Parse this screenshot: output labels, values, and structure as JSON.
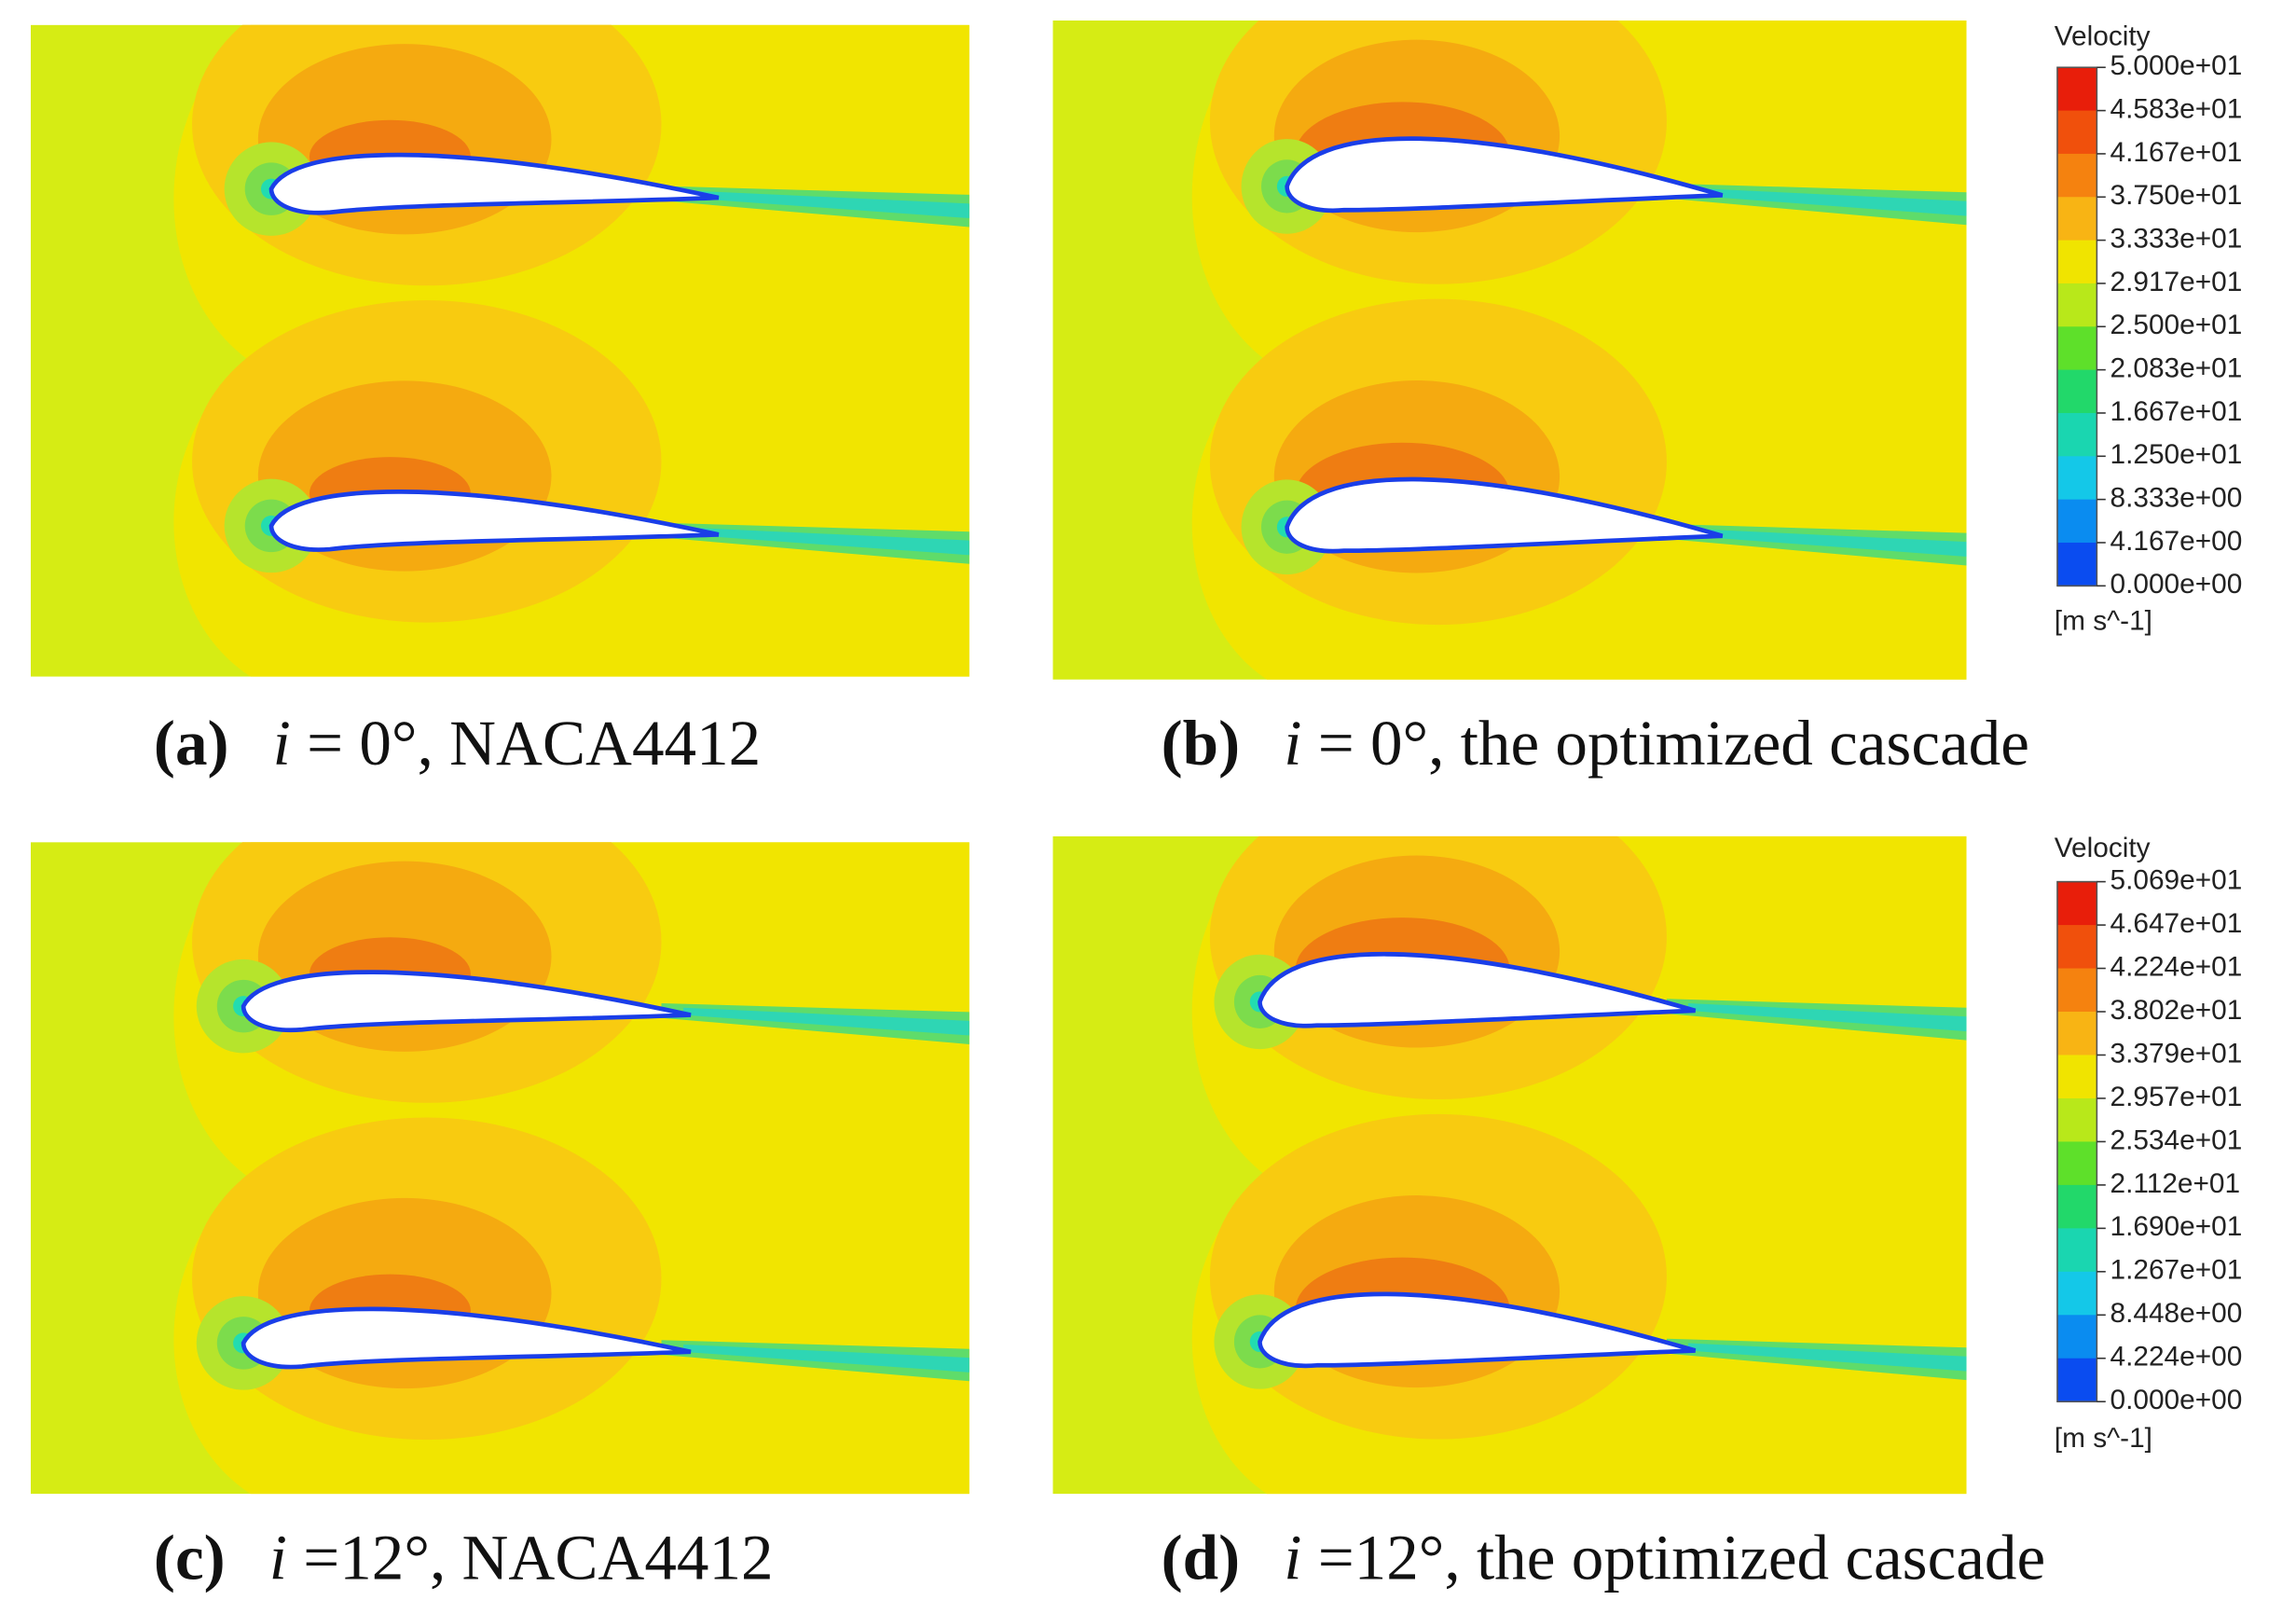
{
  "panels": [
    {
      "label": "(a)",
      "variable": "i",
      "condition": " = 0°",
      "description": ", NACA4412"
    },
    {
      "label": "(b)",
      "variable": "i",
      "condition": " = 0°",
      "description": ", the optimized cascade"
    },
    {
      "label": "(c)",
      "variable": "i",
      "condition": " =12°",
      "description": ", NACA4412"
    },
    {
      "label": "(d)",
      "variable": "i",
      "condition": " =12°",
      "description": ", the optimized cascade"
    }
  ],
  "colorbars": [
    {
      "title": "Velocity",
      "unit": "[m s^-1]",
      "ticks": [
        "5.000e+01",
        "4.583e+01",
        "4.167e+01",
        "3.750e+01",
        "3.333e+01",
        "2.917e+01",
        "2.500e+01",
        "2.083e+01",
        "1.667e+01",
        "1.250e+01",
        "8.333e+00",
        "4.167e+00",
        "0.000e+00"
      ]
    },
    {
      "title": "Velocity",
      "unit": "[m s^-1]",
      "ticks": [
        "5.069e+01",
        "4.647e+01",
        "4.224e+01",
        "3.802e+01",
        "3.379e+01",
        "2.957e+01",
        "2.534e+01",
        "2.112e+01",
        "1.690e+01",
        "1.267e+01",
        "8.448e+00",
        "4.224e+00",
        "0.000e+00"
      ]
    }
  ]
}
